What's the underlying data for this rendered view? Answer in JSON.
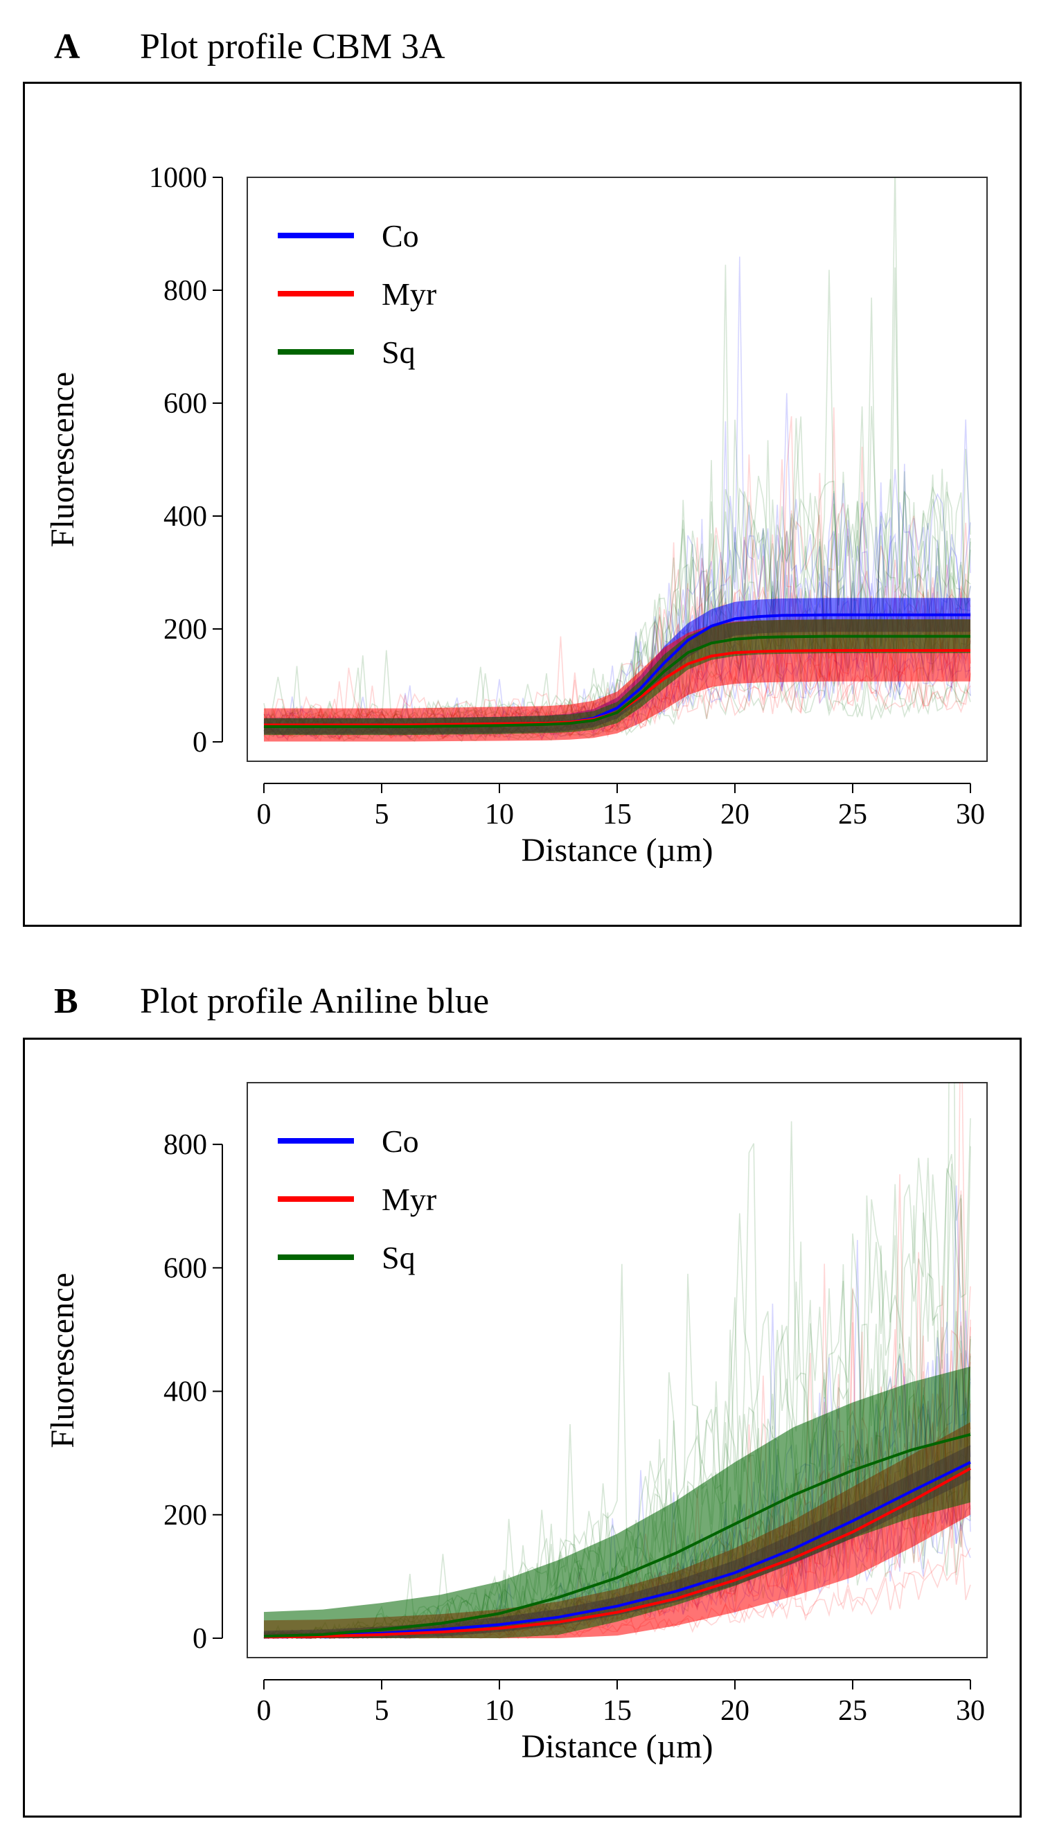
{
  "panels": [
    {
      "letter": "A",
      "title": "Plot profile CBM 3A",
      "chart_data": {
        "type": "line",
        "title": "Plot profile CBM 3A",
        "xlabel": "Distance (µm)",
        "ylabel": "Fluorescence",
        "xlim": [
          0,
          30
        ],
        "ylim": [
          0,
          1000
        ],
        "xticks": [
          0,
          5,
          10,
          15,
          20,
          25,
          30
        ],
        "yticks": [
          0,
          200,
          400,
          600,
          800,
          1000
        ],
        "legend": [
          "Co",
          "Myr",
          "Sq"
        ],
        "legend_position": "top-left",
        "x": [
          0,
          2,
          4,
          6,
          8,
          10,
          12,
          13,
          14,
          15,
          16,
          17,
          18,
          19,
          20,
          21,
          22,
          24,
          26,
          28,
          30
        ],
        "series": [
          {
            "name": "Co",
            "color": "#0000ff",
            "values": [
              28,
              28,
              28,
              28,
              29,
              30,
              32,
              35,
              42,
              60,
              95,
              140,
              180,
              205,
              218,
              222,
              224,
              225,
              225,
              225,
              225
            ],
            "band": 30
          },
          {
            "name": "Myr",
            "color": "#ff0000",
            "values": [
              30,
              30,
              30,
              30,
              31,
              32,
              33,
              35,
              40,
              52,
              80,
              112,
              138,
              152,
              158,
              160,
              161,
              162,
              162,
              162,
              162
            ],
            "band": 55
          },
          {
            "name": "Sq",
            "color": "#006400",
            "values": [
              27,
              27,
              27,
              27,
              28,
              29,
              31,
              33,
              38,
              52,
              85,
              125,
              158,
              175,
              182,
              185,
              186,
              187,
              187,
              187,
              187
            ],
            "band": 30
          }
        ]
      }
    },
    {
      "letter": "B",
      "title": "Plot profile Aniline blue",
      "chart_data": {
        "type": "line",
        "title": "Plot profile Aniline blue",
        "xlabel": "Distance (µm)",
        "ylabel": "Fluorescence",
        "xlim": [
          0,
          30
        ],
        "ylim": [
          0,
          900
        ],
        "xticks": [
          0,
          5,
          10,
          15,
          20,
          25,
          30
        ],
        "yticks": [
          0,
          200,
          400,
          600,
          800
        ],
        "legend": [
          "Co",
          "Myr",
          "Sq"
        ],
        "legend_position": "top-left",
        "x": [
          0,
          2.5,
          5,
          7.5,
          10,
          12.5,
          15,
          17.5,
          20,
          22.5,
          25,
          27.5,
          30
        ],
        "series": [
          {
            "name": "Co",
            "color": "#0000ff",
            "values": [
              2,
              4,
              8,
              14,
              22,
              34,
              52,
              76,
              106,
              145,
              190,
              238,
              285
            ],
            "band": 28
          },
          {
            "name": "Myr",
            "color": "#ff0000",
            "values": [
              2,
              3,
              6,
              10,
              16,
              26,
              42,
              64,
              94,
              130,
              172,
              222,
              275
            ],
            "band": 75
          },
          {
            "name": "Sq",
            "color": "#006400",
            "values": [
              3,
              6,
              14,
              24,
              40,
              66,
              98,
              138,
              185,
              232,
              272,
              305,
              330
            ],
            "band": 110
          }
        ]
      }
    }
  ]
}
